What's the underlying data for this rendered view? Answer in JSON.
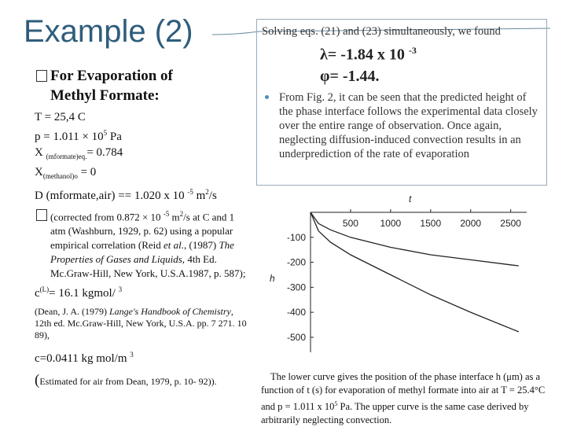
{
  "title": "Example (2)",
  "left": {
    "heading": [
      "For Evaporation of",
      "Methyl Formate:"
    ],
    "lines": [
      [
        "T = 25,4 C"
      ],
      [
        "p = 1.011 × 10",
        "5",
        " Pa"
      ],
      [
        "X ",
        "(mformate)eq.",
        "= 0.784"
      ],
      [
        "X",
        "(methanol)o",
        " = 0"
      ],
      [
        "D (mformate,air) == 1.020 x 10 ",
        "-5",
        " m",
        "2",
        "/s"
      ]
    ],
    "note": [
      "(corrected from 0.872 × 10 ",
      "-5",
      " m",
      "2",
      "/s at C",
      "and 1 atm (Washburn, 1929, p. 62) using a popular empirical correlation (Reid ",
      "et al.",
      ", (1987) ",
      "The Properties of Gases and Liquids,",
      " 4th Ed. Mc.Graw-Hill, New York, U.S.A.1987, p. 587);"
    ],
    "c_liquid": [
      "c",
      "(L)",
      "= 16.1 kgmol/ ",
      "3"
    ],
    "reference": [
      "(Dean, J. A. (1979) ",
      "Lange's Handbook of Chemistry",
      ", 12th ed. Mc.Graw-Hill, New York, U.S.A. pp. 7 271. 10 89),"
    ],
    "c_gas": [
      "c=0.0411 kg mol/m ",
      "3"
    ],
    "estimate": [
      "(",
      "Estimated for air from Dean, 1979, p. 10- 92))."
    ]
  },
  "right_box": {
    "intro": "Solving eqs. (21) and (23) simultaneously, we found",
    "lambda": [
      "λ= -1.84 x 10 ",
      "-3"
    ],
    "phi": "φ= -1.44.",
    "bullet": "From Fig. 2, it can be seen that the predicted height of the phase interface follows the experimental data closely over the entire range of observation. Once again, neglecting diffusion-induced convection results in an underprediction of the rate of evaporation"
  },
  "figure": {
    "x_label": "t",
    "y_label": "h",
    "xlim": [
      0,
      2700
    ],
    "ylim": [
      -560,
      0
    ],
    "xticks": [
      500,
      1000,
      1500,
      2000,
      2500
    ],
    "yticks": [
      -100,
      -200,
      -300,
      -400,
      -500
    ],
    "series": [
      {
        "x": [
          0,
          100,
          250,
          500,
          1000,
          1500,
          2000,
          2500,
          2600
        ],
        "values": [
          0,
          -45,
          -70,
          -100,
          -140,
          -170,
          -190,
          -210,
          -214
        ]
      },
      {
        "x": [
          0,
          100,
          250,
          500,
          1000,
          1500,
          2000,
          2500,
          2600
        ],
        "values": [
          0,
          -75,
          -120,
          -170,
          -250,
          -330,
          -400,
          -465,
          -478
        ]
      }
    ]
  },
  "caption": [
    "The lower curve gives the position of the phase interface h (μm) as a function of t (s) for evaporation of methyl formate into air at T = 25.4°C and p = 1.011 x 10",
    "5",
    " Pa. The upper curve is the same case derived by arbitrarily neglecting convection."
  ]
}
